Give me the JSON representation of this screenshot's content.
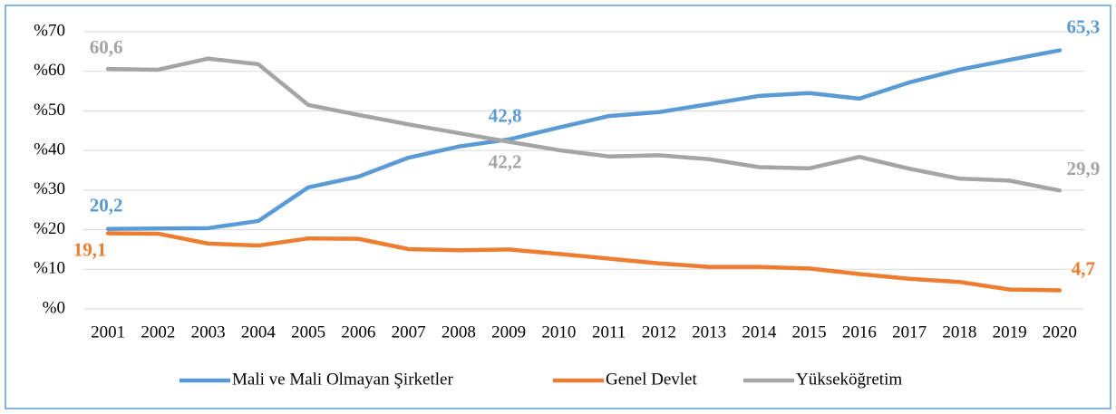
{
  "chart_data": {
    "type": "line",
    "categories": [
      "2001",
      "2002",
      "2003",
      "2004",
      "2005",
      "2006",
      "2007",
      "2008",
      "2009",
      "2010",
      "2011",
      "2012",
      "2013",
      "2014",
      "2015",
      "2016",
      "2017",
      "2018",
      "2019",
      "2020"
    ],
    "series": [
      {
        "name": "Mali ve Mali Olmayan Şirketler",
        "color": "#5b9bd5",
        "values": [
          20.2,
          20.3,
          20.4,
          22.2,
          30.7,
          33.4,
          38.2,
          41.0,
          42.8,
          45.8,
          48.7,
          49.7,
          51.7,
          53.8,
          54.5,
          53.1,
          57.2,
          60.4,
          62.9,
          65.3
        ],
        "value_labels": [
          "20,2",
          null,
          null,
          null,
          null,
          null,
          null,
          null,
          "42,8",
          null,
          null,
          null,
          null,
          null,
          null,
          null,
          null,
          null,
          null,
          "65,3"
        ]
      },
      {
        "name": "Genel Devlet",
        "color": "#ed7d31",
        "values": [
          19.1,
          19.0,
          16.5,
          16.0,
          17.8,
          17.7,
          15.1,
          14.8,
          15.0,
          13.9,
          12.7,
          11.5,
          10.6,
          10.6,
          10.2,
          8.8,
          7.6,
          6.8,
          4.9,
          4.7
        ],
        "value_labels": [
          "19,1",
          null,
          null,
          null,
          null,
          null,
          null,
          null,
          null,
          null,
          null,
          null,
          null,
          null,
          null,
          null,
          null,
          null,
          null,
          "4,7"
        ]
      },
      {
        "name": "Yükseköğretim",
        "color": "#a5a5a5",
        "values": [
          60.6,
          60.4,
          63.2,
          61.8,
          51.5,
          49.0,
          46.6,
          44.4,
          42.2,
          40.1,
          38.5,
          38.8,
          37.8,
          35.8,
          35.5,
          38.4,
          35.4,
          32.9,
          32.4,
          29.9
        ],
        "value_labels": [
          "60,6",
          null,
          null,
          null,
          null,
          null,
          null,
          null,
          "42,2",
          null,
          null,
          null,
          null,
          null,
          null,
          null,
          null,
          null,
          null,
          "29,9"
        ]
      }
    ],
    "ylim": [
      0,
      70
    ],
    "yticks": [
      {
        "value": 0,
        "label": "%0"
      },
      {
        "value": 10,
        "label": "%10"
      },
      {
        "value": 20,
        "label": "%20"
      },
      {
        "value": 30,
        "label": "%30"
      },
      {
        "value": 40,
        "label": "%40"
      },
      {
        "value": 50,
        "label": "%50"
      },
      {
        "value": 60,
        "label": "%60"
      },
      {
        "value": 70,
        "label": "%70"
      }
    ],
    "grid": true,
    "legend": "bottom"
  }
}
